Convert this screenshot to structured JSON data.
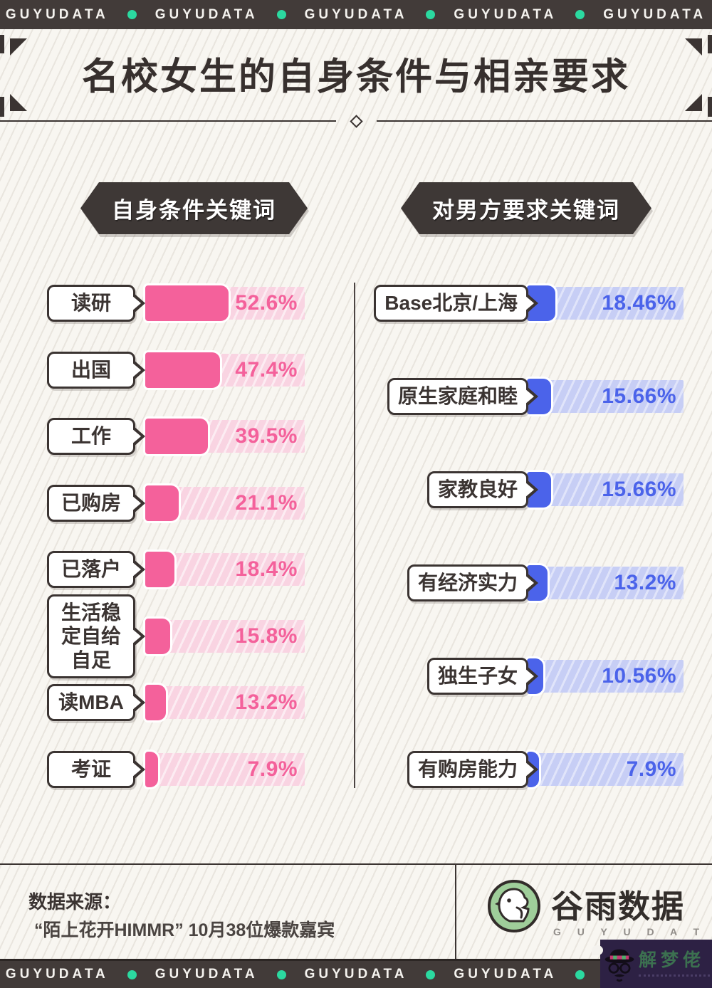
{
  "brand": {
    "name": "GUYUDATA",
    "dot_color": "#2bd9a0",
    "bar_color": "#423b39"
  },
  "title": "名校女生的自身条件与相亲要求",
  "colors": {
    "dark": "#3b3432",
    "background": "#f8f6f1",
    "pink_fill": "#f4619b",
    "pink_track": "#f9d4e2",
    "blue_fill": "#4b63ea",
    "blue_track": "#c7cef5",
    "badge_bg": "#3e3836",
    "logo_green": "#9fce9a",
    "watermark_bg": "#2d2144",
    "watermark_text": "#3c7050"
  },
  "chart_data": [
    {
      "type": "bar",
      "orientation": "horizontal",
      "title": "自身条件关键词",
      "categories": [
        "读研",
        "出国",
        "工作",
        "已购房",
        "已落户",
        "生活稳定自给自足",
        "读MBA",
        "考证"
      ],
      "values": [
        52.6,
        47.4,
        39.5,
        21.1,
        18.4,
        15.8,
        13.2,
        7.9
      ],
      "unit": "%",
      "xlim": [
        0,
        100
      ],
      "bar_color": "#f4619b",
      "track_color": "#f9d4e2",
      "value_labels": [
        "52.6%",
        "47.4%",
        "39.5%",
        "21.1%",
        "18.4%",
        "15.8%",
        "13.2%",
        "7.9%"
      ]
    },
    {
      "type": "bar",
      "orientation": "horizontal",
      "title": "对男方要求关键词",
      "categories": [
        "Base北京/上海",
        "原生家庭和睦",
        "家教良好",
        "有经济实力",
        "独生子女",
        "有购房能力"
      ],
      "values": [
        18.46,
        15.66,
        15.66,
        13.2,
        10.56,
        7.9
      ],
      "unit": "%",
      "xlim": [
        0,
        100
      ],
      "bar_color": "#4b63ea",
      "track_color": "#c7cef5",
      "value_labels": [
        "18.46%",
        "15.66%",
        "15.66%",
        "13.2%",
        "10.56%",
        "7.9%"
      ]
    }
  ],
  "charts": {
    "left": {
      "header": "自身条件关键词",
      "rows": [
        {
          "label": "读研",
          "value": 52.6,
          "pct": "52.6%"
        },
        {
          "label": "出国",
          "value": 47.4,
          "pct": "47.4%"
        },
        {
          "label": "工作",
          "value": 39.5,
          "pct": "39.5%"
        },
        {
          "label": "已购房",
          "value": 21.1,
          "pct": "21.1%"
        },
        {
          "label": "已落户",
          "value": 18.4,
          "pct": "18.4%"
        },
        {
          "label": "生活稳定自给自足",
          "value": 15.8,
          "pct": "15.8%"
        },
        {
          "label": "读MBA",
          "value": 13.2,
          "pct": "13.2%"
        },
        {
          "label": "考证",
          "value": 7.9,
          "pct": "7.9%"
        }
      ]
    },
    "right": {
      "header": "对男方要求关键词",
      "rows": [
        {
          "label": "Base北京/上海",
          "value": 18.46,
          "pct": "18.46%"
        },
        {
          "label": "原生家庭和睦",
          "value": 15.66,
          "pct": "15.66%"
        },
        {
          "label": "家教良好",
          "value": 15.66,
          "pct": "15.66%"
        },
        {
          "label": "有经济实力",
          "value": 13.2,
          "pct": "13.2%"
        },
        {
          "label": "独生子女",
          "value": 10.56,
          "pct": "10.56%"
        },
        {
          "label": "有购房能力",
          "value": 7.9,
          "pct": "7.9%"
        }
      ]
    }
  },
  "footer": {
    "source_label": "数据来源：",
    "source_text": "“陌上花开HIMMR” 10月38位爆款嘉宾",
    "logo_cn": "谷雨数据",
    "logo_en": "G U Y U D A T A"
  },
  "watermark": {
    "text": "解梦佬"
  }
}
